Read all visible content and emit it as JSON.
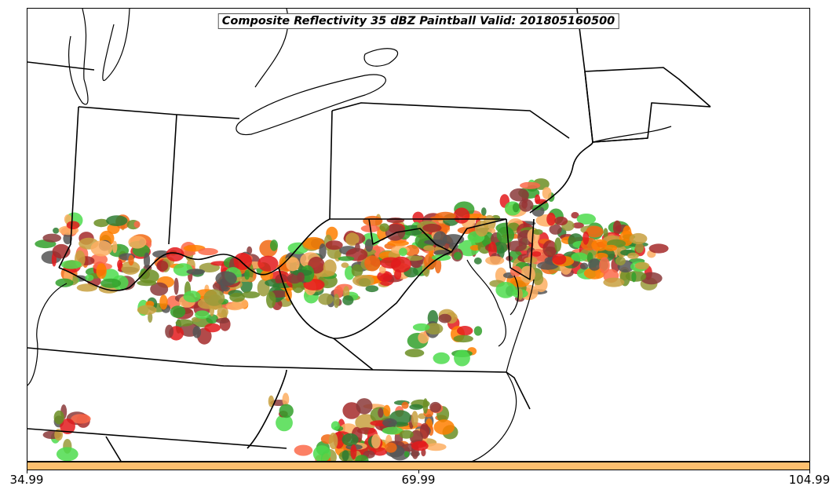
{
  "title": "Composite Reflectivity 35 dBZ Paintball Valid: 201805160500",
  "colorbar": {
    "color": "#fdbf6f",
    "ticks": [
      "34.99",
      "69.99",
      "104.99"
    ]
  },
  "member_colors": [
    "#fdae61",
    "#e31a1c",
    "#fb6a4a",
    "#f16913",
    "#33a02c",
    "#4ddc4d",
    "#6b8e23",
    "#9a9a3a",
    "#a52a2a",
    "#8b3a3a",
    "#555555",
    "#2e7d32",
    "#c8a040",
    "#ff7f00"
  ]
}
